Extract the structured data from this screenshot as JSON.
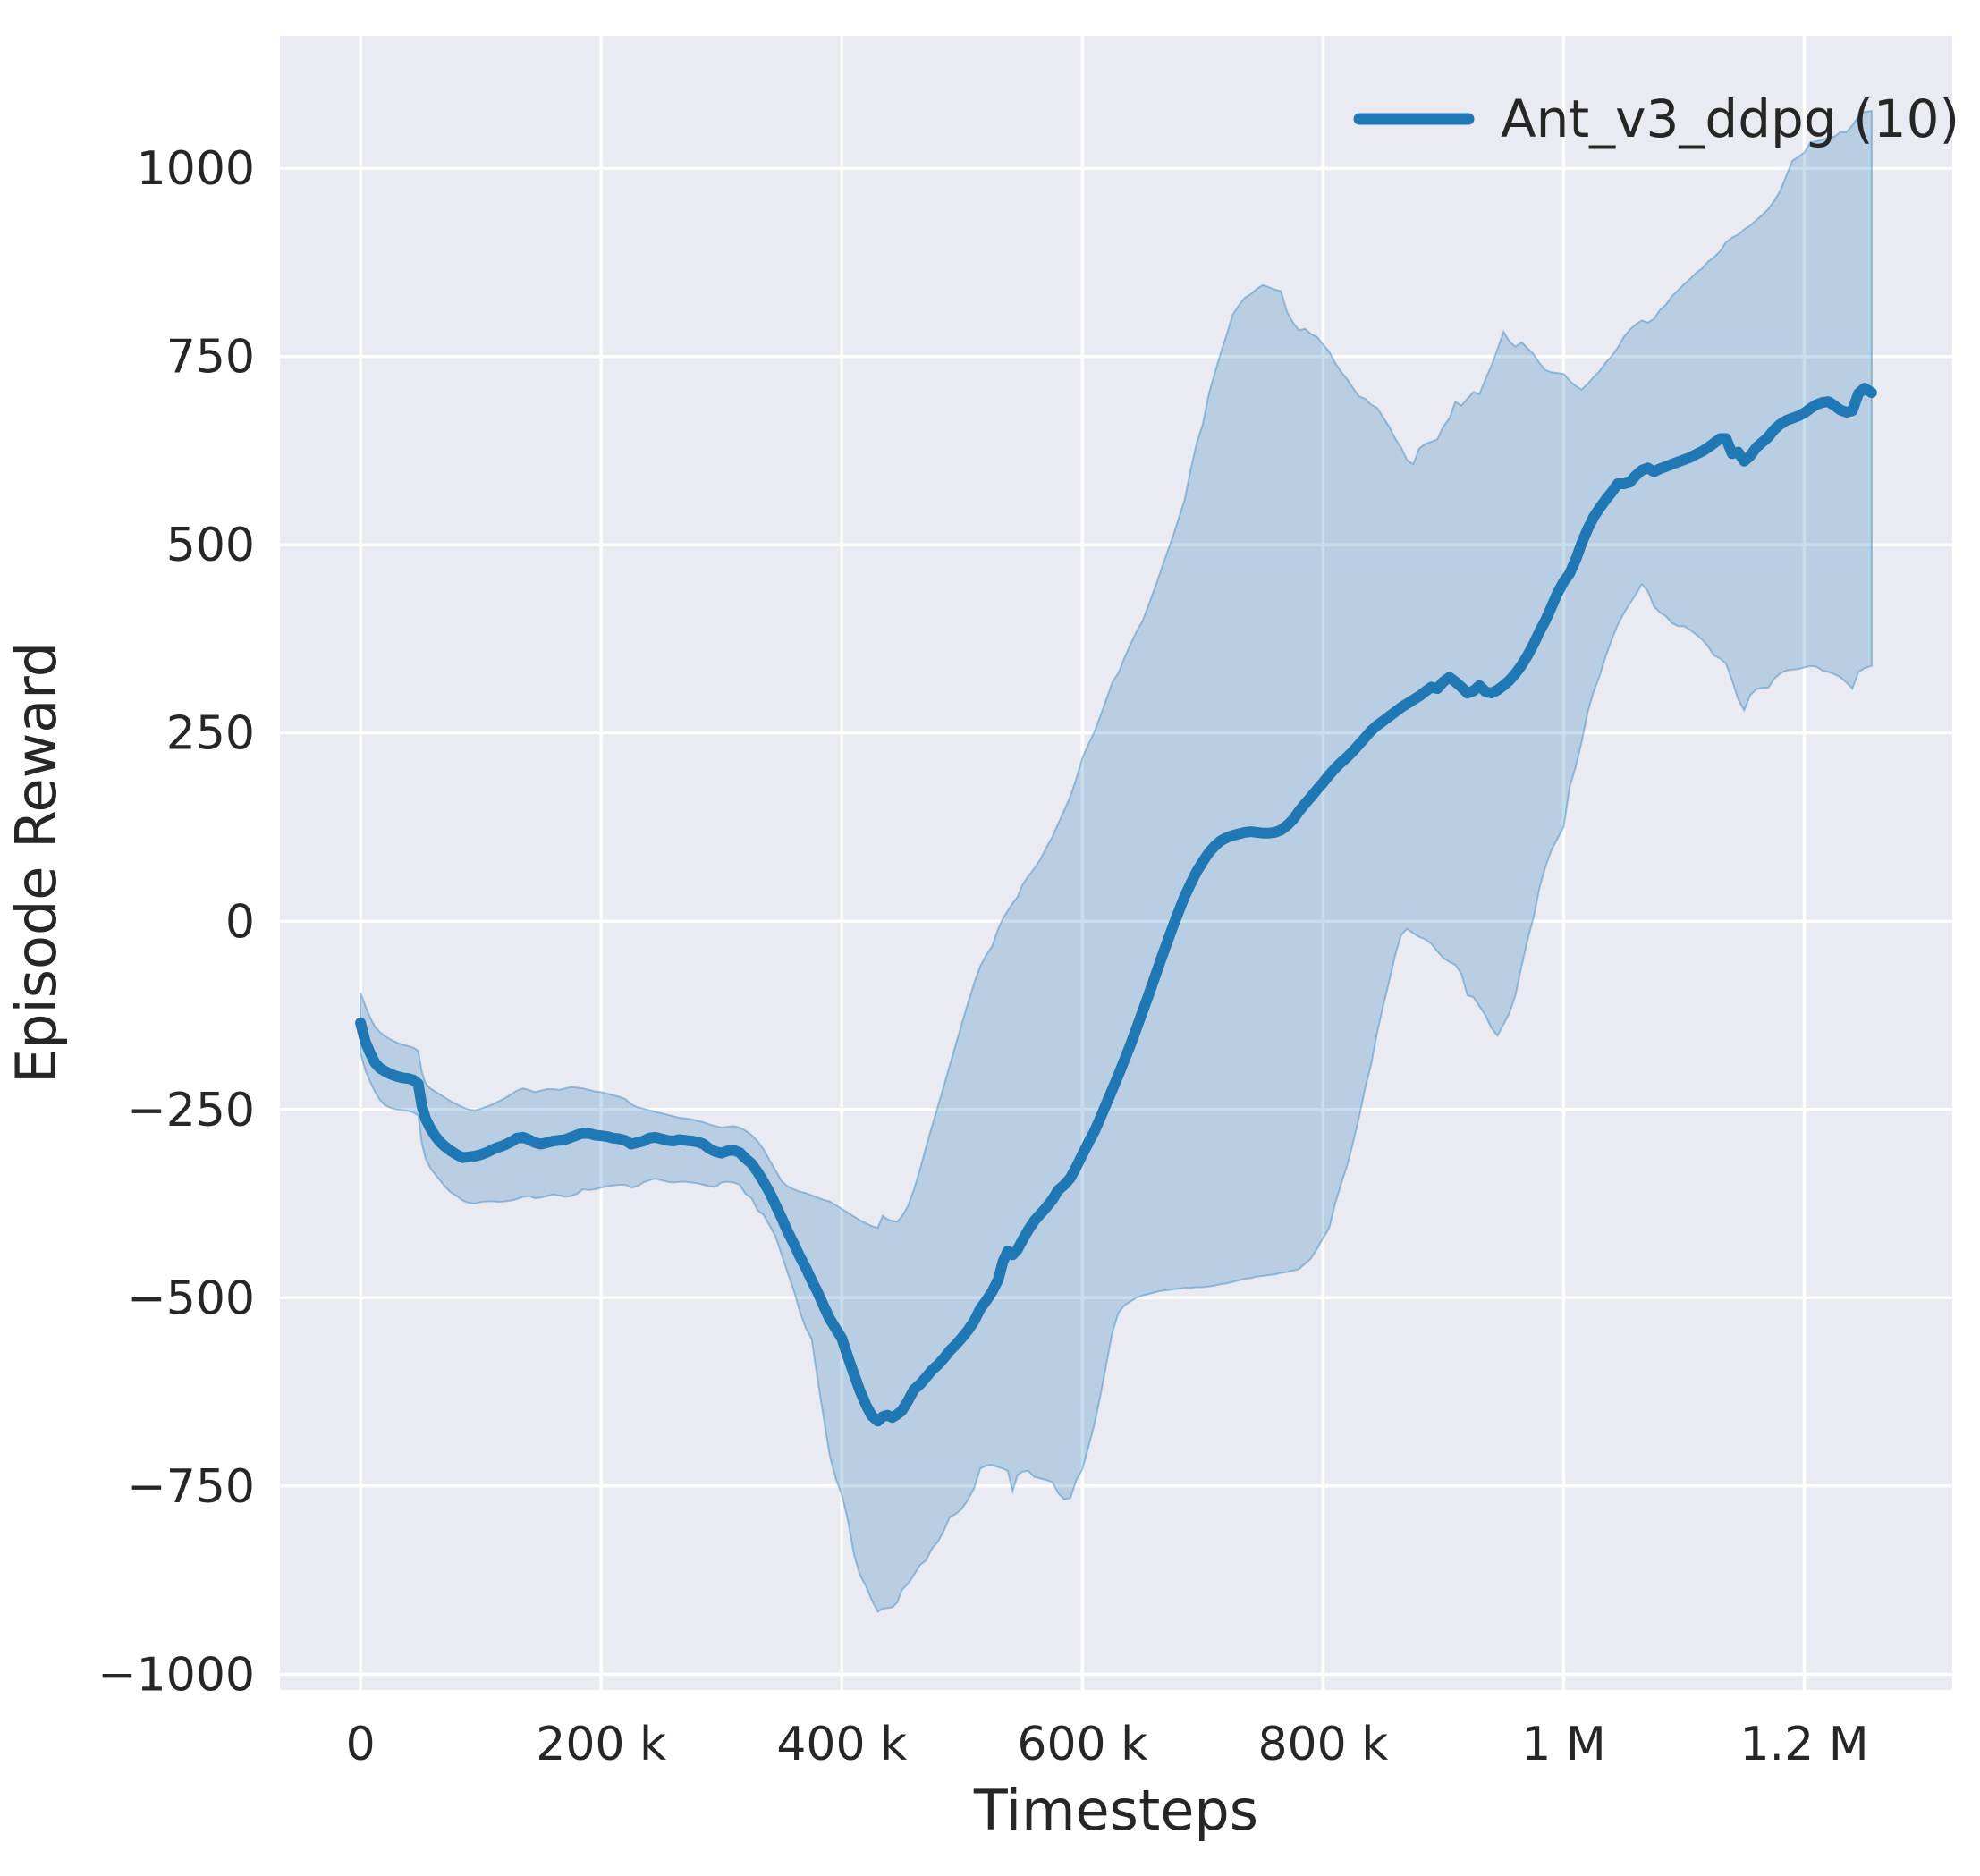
{
  "figure": {
    "background_color": "#ffffff",
    "axes_background_color": "#eaeaf2",
    "gridline_color": "#ffffff",
    "text_color": "#262626"
  },
  "legend": {
    "label": "Ant_v3_ddpg (10)",
    "position": "upper right",
    "line_color": "#1f77b4"
  },
  "axes": {
    "x_label": "Timesteps",
    "y_label": "Episode Reward",
    "x_tick_labels": [
      "0",
      "200 k",
      "400 k",
      "600 k",
      "800 k",
      "1 M",
      "1.2 M"
    ],
    "y_tick_labels": [
      "1000",
      "750",
      "500",
      "250",
      "0",
      "−250",
      "−500",
      "−750",
      "−1000"
    ]
  },
  "chart_data": {
    "type": "line",
    "title": "",
    "xlabel": "Timesteps",
    "ylabel": "Episode Reward",
    "grid": true,
    "legend_position": "upper right",
    "xlim": [
      -67000,
      1323000
    ],
    "ylim": [
      -1021,
      1176
    ],
    "x_ticks": [
      0,
      200000,
      400000,
      600000,
      800000,
      1000000,
      1200000
    ],
    "y_ticks": [
      1000,
      750,
      500,
      250,
      0,
      -250,
      -500,
      -750,
      -1000
    ],
    "line_color": "#1f77b4",
    "band_color": "#1f77b4",
    "band_opacity": 0.24,
    "x_unit": 1000,
    "series": [
      {
        "name": "Ant_v3_ddpg (10)",
        "x_k": [
          0,
          4,
          8,
          12,
          16,
          20,
          25,
          30,
          35,
          40,
          44,
          48,
          51,
          54,
          58,
          62,
          66,
          70,
          75,
          80,
          85,
          90,
          95,
          100,
          105,
          110,
          115,
          120,
          125,
          130,
          135,
          140,
          145,
          150,
          155,
          160,
          165,
          170,
          175,
          180,
          185,
          190,
          195,
          200,
          205,
          210,
          215,
          220,
          225,
          230,
          235,
          240,
          245,
          250,
          255,
          260,
          265,
          270,
          275,
          280,
          285,
          290,
          295,
          300,
          305,
          310,
          315,
          320,
          325,
          330,
          335,
          340,
          345,
          350,
          355,
          360,
          365,
          370,
          375,
          380,
          385,
          390,
          395,
          400,
          405,
          410,
          415,
          420,
          425,
          430,
          434,
          438,
          442,
          446,
          450,
          455,
          460,
          465,
          470,
          475,
          480,
          485,
          490,
          495,
          500,
          505,
          510,
          515,
          520,
          525,
          530,
          534,
          538,
          542,
          546,
          550,
          555,
          560,
          565,
          570,
          575,
          580,
          585,
          590,
          595,
          600,
          605,
          610,
          615,
          620,
          625,
          630,
          635,
          640,
          645,
          650,
          655,
          660,
          665,
          670,
          675,
          680,
          685,
          690,
          695,
          700,
          705,
          710,
          715,
          720,
          725,
          730,
          735,
          740,
          745,
          750,
          755,
          760,
          765,
          770,
          775,
          780,
          785,
          790,
          795,
          800,
          805,
          810,
          815,
          820,
          825,
          830,
          835,
          840,
          845,
          850,
          855,
          860,
          865,
          870,
          875,
          880,
          885,
          890,
          895,
          900,
          905,
          910,
          915,
          920,
          925,
          930,
          935,
          940,
          945,
          950,
          955,
          960,
          965,
          970,
          975,
          980,
          985,
          990,
          995,
          1000,
          1005,
          1010,
          1015,
          1020,
          1025,
          1030,
          1035,
          1040,
          1045,
          1050,
          1055,
          1060,
          1065,
          1070,
          1075,
          1080,
          1085,
          1090,
          1095,
          1100,
          1105,
          1110,
          1115,
          1120,
          1125,
          1130,
          1135,
          1140,
          1145,
          1150,
          1155,
          1160,
          1165,
          1170,
          1175,
          1180,
          1185,
          1190,
          1195,
          1200,
          1205,
          1210,
          1215,
          1220,
          1225,
          1230,
          1235,
          1240,
          1245,
          1250,
          1256
        ],
        "mean": [
          -135,
          -160,
          -175,
          -188,
          -195,
          -199,
          -203,
          -206,
          -208,
          -209,
          -211,
          -216,
          -245,
          -262,
          -275,
          -285,
          -293,
          -299,
          -305,
          -310,
          -314,
          -313,
          -312,
          -310,
          -307,
          -303,
          -300,
          -297,
          -293,
          -288,
          -287,
          -290,
          -294,
          -296,
          -294,
          -292,
          -291,
          -290,
          -287,
          -284,
          -281,
          -282,
          -284,
          -285,
          -286,
          -288,
          -289,
          -291,
          -296,
          -294,
          -292,
          -288,
          -287,
          -289,
          -291,
          -292,
          -290,
          -291,
          -292,
          -293,
          -296,
          -302,
          -306,
          -308,
          -305,
          -304,
          -307,
          -315,
          -322,
          -333,
          -346,
          -360,
          -377,
          -394,
          -412,
          -428,
          -445,
          -460,
          -477,
          -493,
          -511,
          -528,
          -541,
          -554,
          -578,
          -601,
          -623,
          -642,
          -657,
          -664,
          -658,
          -656,
          -659,
          -655,
          -650,
          -637,
          -622,
          -615,
          -606,
          -596,
          -589,
          -580,
          -570,
          -562,
          -553,
          -543,
          -531,
          -515,
          -504,
          -492,
          -476,
          -452,
          -438,
          -443,
          -436,
          -424,
          -410,
          -398,
          -389,
          -380,
          -370,
          -357,
          -350,
          -341,
          -326,
          -310,
          -294,
          -279,
          -261,
          -242,
          -223,
          -204,
          -184,
          -164,
          -142,
          -120,
          -98,
          -75,
          -52,
          -30,
          -8,
          13,
          33,
          50,
          66,
          79,
          91,
          100,
          107,
          111,
          114,
          116,
          118,
          119,
          118,
          117,
          117,
          118,
          121,
          127,
          135,
          146,
          156,
          165,
          175,
          184,
          194,
          203,
          211,
          218,
          226,
          235,
          244,
          253,
          260,
          266,
          272,
          278,
          284,
          289,
          294,
          299,
          305,
          311,
          309,
          318,
          324,
          318,
          311,
          303,
          306,
          313,
          305,
          303,
          307,
          313,
          320,
          329,
          340,
          353,
          368,
          385,
          400,
          418,
          436,
          451,
          462,
          480,
          502,
          521,
          537,
          549,
          560,
          570,
          581,
          581,
          583,
          592,
          599,
          602,
          597,
          601,
          604,
          607,
          610,
          613,
          616,
          620,
          624,
          629,
          635,
          641,
          641,
          621,
          623,
          611,
          618,
          629,
          636,
          643,
          653,
          660,
          665,
          668,
          671,
          675,
          681,
          686,
          689,
          690,
          685,
          679,
          676,
          678,
          701,
          708,
          702
        ],
        "band_upper": [
          -95,
          -112,
          -128,
          -140,
          -147,
          -152,
          -157,
          -161,
          -164,
          -166,
          -168,
          -172,
          -200,
          -215,
          -222,
          -226,
          -230,
          -234,
          -239,
          -243,
          -247,
          -250,
          -251,
          -249,
          -246,
          -243,
          -239,
          -235,
          -230,
          -225,
          -222,
          -224,
          -227,
          -225,
          -223,
          -223,
          -224,
          -222,
          -220,
          -221,
          -222,
          -224,
          -226,
          -227,
          -229,
          -231,
          -233,
          -236,
          -243,
          -247,
          -249,
          -251,
          -253,
          -255,
          -257,
          -259,
          -261,
          -262,
          -263,
          -265,
          -267,
          -270,
          -272,
          -274,
          -273,
          -272,
          -274,
          -278,
          -284,
          -292,
          -303,
          -317,
          -331,
          -345,
          -352,
          -356,
          -359,
          -361,
          -364,
          -367,
          -370,
          -372,
          -377,
          -382,
          -387,
          -392,
          -397,
          -401,
          -405,
          -407,
          -391,
          -396,
          -398,
          -399,
          -392,
          -378,
          -356,
          -330,
          -300,
          -272,
          -245,
          -218,
          -190,
          -162,
          -135,
          -108,
          -82,
          -60,
          -45,
          -33,
          -10,
          4,
          14,
          24,
          32,
          48,
          60,
          70,
          82,
          98,
          112,
          130,
          148,
          166,
          190,
          217,
          235,
          252,
          273,
          295,
          318,
          330,
          350,
          368,
          385,
          399,
          420,
          442,
          465,
          488,
          510,
          535,
          560,
          600,
          635,
          660,
          700,
          728,
          755,
          780,
          806,
          818,
          828,
          833,
          840,
          845,
          842,
          839,
          837,
          810,
          795,
          785,
          787,
          780,
          776,
          766,
          757,
          742,
          730,
          720,
          708,
          697,
          694,
          686,
          682,
          669,
          657,
          641,
          629,
          612,
          607,
          628,
          634,
          637,
          640,
          657,
          668,
          690,
          685,
          694,
          703,
          700,
          720,
          738,
          760,
          783,
          770,
          763,
          769,
          761,
          753,
          741,
          732,
          729,
          728,
          727,
          718,
          711,
          706,
          714,
          723,
          731,
          742,
          751,
          762,
          776,
          786,
          793,
          798,
          795,
          800,
          812,
          819,
          830,
          838,
          846,
          853,
          861,
          867,
          876,
          882,
          890,
          902,
          908,
          912,
          919,
          924,
          931,
          938,
          946,
          957,
          970,
          990,
          1010,
          1015,
          1021,
          1034,
          1036,
          1038,
          1041,
          1042,
          1048,
          1048,
          1057,
          1069,
          1075,
          1076
        ],
        "band_lower": [
          -175,
          -198,
          -213,
          -227,
          -237,
          -244,
          -248,
          -250,
          -251,
          -252,
          -254,
          -258,
          -295,
          -315,
          -328,
          -336,
          -344,
          -352,
          -360,
          -365,
          -371,
          -374,
          -375,
          -373,
          -372,
          -372,
          -373,
          -372,
          -371,
          -369,
          -366,
          -365,
          -368,
          -367,
          -365,
          -363,
          -364,
          -366,
          -365,
          -362,
          -356,
          -357,
          -356,
          -354,
          -352,
          -351,
          -350,
          -350,
          -354,
          -352,
          -347,
          -344,
          -342,
          -344,
          -346,
          -347,
          -346,
          -346,
          -347,
          -348,
          -350,
          -352,
          -353,
          -347,
          -346,
          -347,
          -350,
          -362,
          -368,
          -384,
          -390,
          -404,
          -419,
          -443,
          -467,
          -490,
          -518,
          -540,
          -555,
          -610,
          -660,
          -710,
          -740,
          -762,
          -795,
          -840,
          -868,
          -883,
          -902,
          -917,
          -913,
          -912,
          -911,
          -905,
          -888,
          -880,
          -868,
          -855,
          -849,
          -833,
          -824,
          -809,
          -791,
          -787,
          -780,
          -768,
          -753,
          -727,
          -723,
          -722,
          -725,
          -727,
          -730,
          -757,
          -736,
          -731,
          -730,
          -738,
          -740,
          -742,
          -745,
          -760,
          -768,
          -766,
          -742,
          -728,
          -698,
          -668,
          -630,
          -588,
          -545,
          -520,
          -510,
          -505,
          -500,
          -497,
          -495,
          -493,
          -491,
          -490,
          -489,
          -488,
          -487,
          -487,
          -486,
          -486,
          -485,
          -484,
          -482,
          -481,
          -479,
          -477,
          -475,
          -474,
          -472,
          -471,
          -470,
          -469,
          -467,
          -466,
          -464,
          -462,
          -455,
          -448,
          -435,
          -421,
          -408,
          -376,
          -349,
          -325,
          -294,
          -260,
          -222,
          -190,
          -148,
          -112,
          -80,
          -45,
          -18,
          -10,
          -16,
          -21,
          -24,
          -30,
          -40,
          -49,
          -54,
          -58,
          -70,
          -98,
          -101,
          -113,
          -125,
          -142,
          -152,
          -137,
          -122,
          -98,
          -60,
          -25,
          5,
          45,
          73,
          95,
          110,
          125,
          178,
          205,
          238,
          278,
          305,
          326,
          352,
          374,
          394,
          409,
          422,
          434,
          448,
          438,
          418,
          410,
          405,
          396,
          392,
          392,
          387,
          381,
          374,
          365,
          353,
          349,
          342,
          320,
          295,
          280,
          300,
          308,
          310,
          310,
          322,
          329,
          333,
          334,
          335,
          337,
          339,
          338,
          333,
          331,
          328,
          324,
          317,
          309,
          331,
          336,
          339
        ]
      }
    ]
  }
}
